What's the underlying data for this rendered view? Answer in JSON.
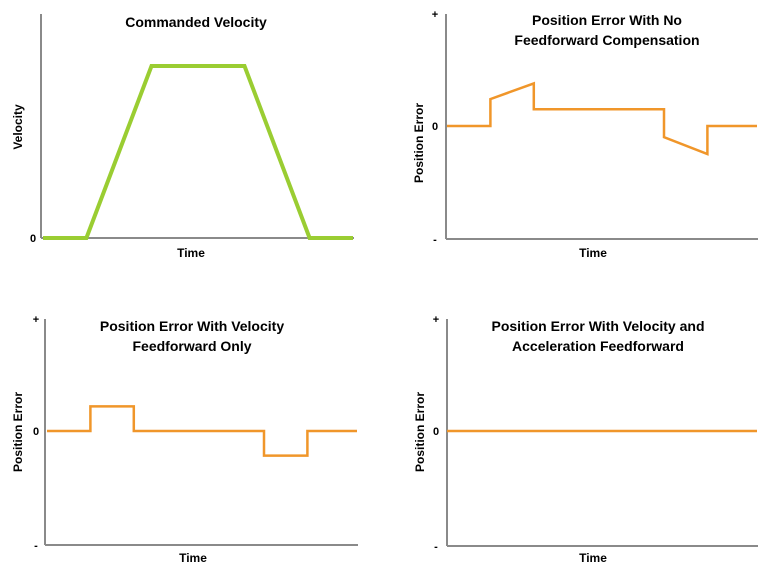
{
  "chart_data": [
    {
      "type": "line",
      "title": [
        "Commanded Velocity"
      ],
      "xlabel": "Time",
      "ylabel": "Velocity",
      "yticks": [
        "0"
      ],
      "ylim": [
        0,
        1.1
      ],
      "color": "#9acd32",
      "series": [
        {
          "x": [
            0,
            0.14,
            0.35,
            0.65,
            0.86,
            1.0
          ],
          "y": [
            0,
            0,
            1,
            1,
            0,
            0
          ]
        }
      ]
    },
    {
      "type": "line",
      "title": [
        "Position Error With No",
        "Feedforward Compensation"
      ],
      "xlabel": "Time",
      "ylabel": "Position Error",
      "yticks": [
        "+",
        "0",
        "-"
      ],
      "ylim": [
        -1,
        1
      ],
      "color": "#f0962a",
      "series": [
        {
          "x": [
            0,
            0.14,
            0.14,
            0.28,
            0.28,
            0.7,
            0.7,
            0.84,
            0.84,
            1.0
          ],
          "y": [
            0,
            0,
            0.24,
            0.38,
            0.15,
            0.15,
            -0.1,
            -0.25,
            0,
            0
          ]
        }
      ]
    },
    {
      "type": "line",
      "title": [
        "Position Error With Velocity",
        "Feedforward Only"
      ],
      "xlabel": "Time",
      "ylabel": "Position Error",
      "yticks": [
        "+",
        "0",
        "-"
      ],
      "ylim": [
        -1,
        1
      ],
      "color": "#f0962a",
      "series": [
        {
          "x": [
            0,
            0.14,
            0.14,
            0.28,
            0.28,
            0.7,
            0.7,
            0.84,
            0.84,
            1.0
          ],
          "y": [
            0,
            0,
            0.22,
            0.22,
            0,
            0,
            -0.22,
            -0.22,
            0,
            0
          ]
        }
      ]
    },
    {
      "type": "line",
      "title": [
        "Position Error With Velocity and",
        "Acceleration Feedforward"
      ],
      "xlabel": "Time",
      "ylabel": "Position Error",
      "yticks": [
        "+",
        "0",
        "-"
      ],
      "ylim": [
        -1,
        1
      ],
      "color": "#f0962a",
      "series": [
        {
          "x": [
            0,
            1.0
          ],
          "y": [
            0,
            0
          ]
        }
      ]
    }
  ]
}
